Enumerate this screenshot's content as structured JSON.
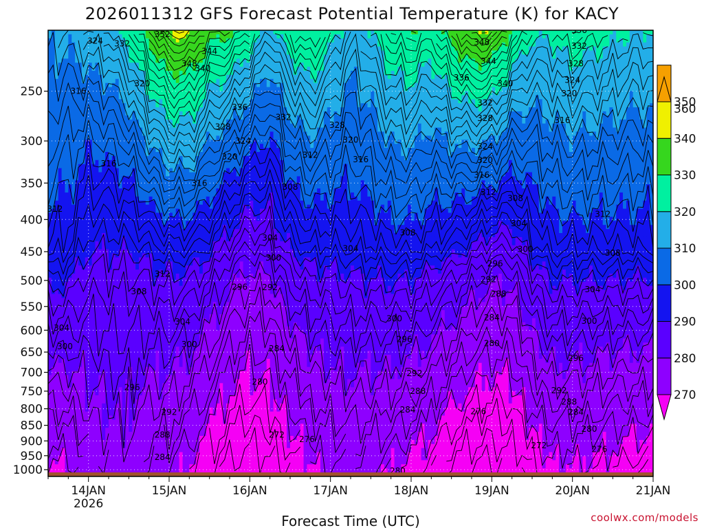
{
  "chart_data": {
    "type": "heatmap",
    "title": "2026011312 GFS Forecast Potential Temperature (K) for KACY",
    "xlabel": "Forecast Time (UTC)",
    "ylabel": "",
    "credit": "coolwx.com/models",
    "x_ticks": [
      {
        "label": "14JAN",
        "sub": "2026",
        "hour": 12
      },
      {
        "label": "15JAN",
        "sub": "",
        "hour": 36
      },
      {
        "label": "16JAN",
        "sub": "",
        "hour": 60
      },
      {
        "label": "17JAN",
        "sub": "",
        "hour": 84
      },
      {
        "label": "18JAN",
        "sub": "",
        "hour": 108
      },
      {
        "label": "19JAN",
        "sub": "",
        "hour": 132
      },
      {
        "label": "20JAN",
        "sub": "",
        "hour": 156
      },
      {
        "label": "21JAN",
        "sub": "",
        "hour": 180
      }
    ],
    "xlim_hours": [
      0,
      180
    ],
    "y_ticks": [
      250,
      300,
      350,
      400,
      450,
      500,
      550,
      600,
      650,
      700,
      750,
      800,
      850,
      900,
      950,
      1000
    ],
    "ylim_hpa": [
      200,
      1025
    ],
    "y_scale": "log",
    "colorbar": {
      "ticks": [
        270,
        280,
        290,
        300,
        310,
        320,
        330,
        340,
        350,
        360
      ],
      "colors": [
        "#f500f5",
        "#8e00ff",
        "#5a00ff",
        "#1414f0",
        "#0a6ae6",
        "#23aee8",
        "#00f0a0",
        "#36d61e",
        "#f0f000",
        "#f6a000"
      ]
    },
    "contour_labels": [
      {
        "v": 324,
        "h": 14,
        "p": 208
      },
      {
        "v": 332,
        "h": 22,
        "p": 210
      },
      {
        "v": 352,
        "h": 34,
        "p": 203
      },
      {
        "v": 344,
        "h": 48,
        "p": 216
      },
      {
        "v": 348,
        "h": 42,
        "p": 226
      },
      {
        "v": 340,
        "h": 46,
        "p": 230
      },
      {
        "v": 348,
        "h": 129,
        "p": 209
      },
      {
        "v": 344,
        "h": 131,
        "p": 224
      },
      {
        "v": 340,
        "h": 136,
        "p": 243
      },
      {
        "v": 336,
        "h": 123,
        "p": 238
      },
      {
        "v": 332,
        "h": 130,
        "p": 261
      },
      {
        "v": 328,
        "h": 130,
        "p": 276
      },
      {
        "v": 324,
        "h": 130,
        "p": 306
      },
      {
        "v": 320,
        "h": 130,
        "p": 322
      },
      {
        "v": 316,
        "h": 129,
        "p": 340
      },
      {
        "v": 336,
        "h": 158,
        "p": 200
      },
      {
        "v": 332,
        "h": 158,
        "p": 212
      },
      {
        "v": 328,
        "h": 157,
        "p": 226
      },
      {
        "v": 324,
        "h": 156,
        "p": 240
      },
      {
        "v": 320,
        "h": 155,
        "p": 252
      },
      {
        "v": 316,
        "h": 153,
        "p": 278
      },
      {
        "v": 316,
        "h": 9,
        "p": 250
      },
      {
        "v": 320,
        "h": 28,
        "p": 243
      },
      {
        "v": 336,
        "h": 57,
        "p": 265
      },
      {
        "v": 332,
        "h": 70,
        "p": 275
      },
      {
        "v": 328,
        "h": 52,
        "p": 285
      },
      {
        "v": 324,
        "h": 58,
        "p": 300
      },
      {
        "v": 320,
        "h": 54,
        "p": 318
      },
      {
        "v": 328,
        "h": 86,
        "p": 283
      },
      {
        "v": 320,
        "h": 90,
        "p": 299
      },
      {
        "v": 316,
        "h": 93,
        "p": 321
      },
      {
        "v": 312,
        "h": 78,
        "p": 316
      },
      {
        "v": 316,
        "h": 18,
        "p": 326
      },
      {
        "v": 316,
        "h": 45,
        "p": 350
      },
      {
        "v": 308,
        "h": 72,
        "p": 355
      },
      {
        "v": 312,
        "h": 2,
        "p": 385
      },
      {
        "v": 312,
        "h": 131,
        "p": 362
      },
      {
        "v": 308,
        "h": 139,
        "p": 370
      },
      {
        "v": 304,
        "h": 140,
        "p": 406
      },
      {
        "v": 300,
        "h": 142,
        "p": 446
      },
      {
        "v": 296,
        "h": 133,
        "p": 470
      },
      {
        "v": 292,
        "h": 131,
        "p": 498
      },
      {
        "v": 288,
        "h": 134,
        "p": 525
      },
      {
        "v": 284,
        "h": 132,
        "p": 573
      },
      {
        "v": 280,
        "h": 132,
        "p": 630
      },
      {
        "v": 276,
        "h": 128,
        "p": 808
      },
      {
        "v": 272,
        "h": 146,
        "p": 915
      },
      {
        "v": 312,
        "h": 165,
        "p": 392
      },
      {
        "v": 308,
        "h": 168,
        "p": 452
      },
      {
        "v": 304,
        "h": 162,
        "p": 517
      },
      {
        "v": 300,
        "h": 161,
        "p": 580
      },
      {
        "v": 296,
        "h": 157,
        "p": 665
      },
      {
        "v": 292,
        "h": 152,
        "p": 748
      },
      {
        "v": 288,
        "h": 155,
        "p": 780
      },
      {
        "v": 284,
        "h": 157,
        "p": 810
      },
      {
        "v": 280,
        "h": 161,
        "p": 861
      },
      {
        "v": 276,
        "h": 164,
        "p": 928
      },
      {
        "v": 308,
        "h": 107,
        "p": 420
      },
      {
        "v": 304,
        "h": 90,
        "p": 445
      },
      {
        "v": 304,
        "h": 66,
        "p": 428
      },
      {
        "v": 300,
        "h": 67,
        "p": 460
      },
      {
        "v": 296,
        "h": 57,
        "p": 512
      },
      {
        "v": 292,
        "h": 66,
        "p": 513
      },
      {
        "v": 284,
        "h": 68,
        "p": 642
      },
      {
        "v": 280,
        "h": 63,
        "p": 725
      },
      {
        "v": 272,
        "h": 68,
        "p": 880
      },
      {
        "v": 276,
        "h": 77,
        "p": 895
      },
      {
        "v": 300,
        "h": 103,
        "p": 575
      },
      {
        "v": 296,
        "h": 106,
        "p": 620
      },
      {
        "v": 292,
        "h": 109,
        "p": 703
      },
      {
        "v": 288,
        "h": 110,
        "p": 750
      },
      {
        "v": 284,
        "h": 107,
        "p": 803
      },
      {
        "v": 280,
        "h": 104,
        "p": 1005
      },
      {
        "v": 312,
        "h": 34,
        "p": 488
      },
      {
        "v": 308,
        "h": 27,
        "p": 521
      },
      {
        "v": 304,
        "h": 40,
        "p": 582
      },
      {
        "v": 300,
        "h": 42,
        "p": 632
      },
      {
        "v": 304,
        "h": 4,
        "p": 595
      },
      {
        "v": 300,
        "h": 5,
        "p": 637
      },
      {
        "v": 296,
        "h": 25,
        "p": 740
      },
      {
        "v": 292,
        "h": 36,
        "p": 810
      },
      {
        "v": 288,
        "h": 34,
        "p": 880
      },
      {
        "v": 284,
        "h": 34,
        "p": 955
      }
    ]
  }
}
